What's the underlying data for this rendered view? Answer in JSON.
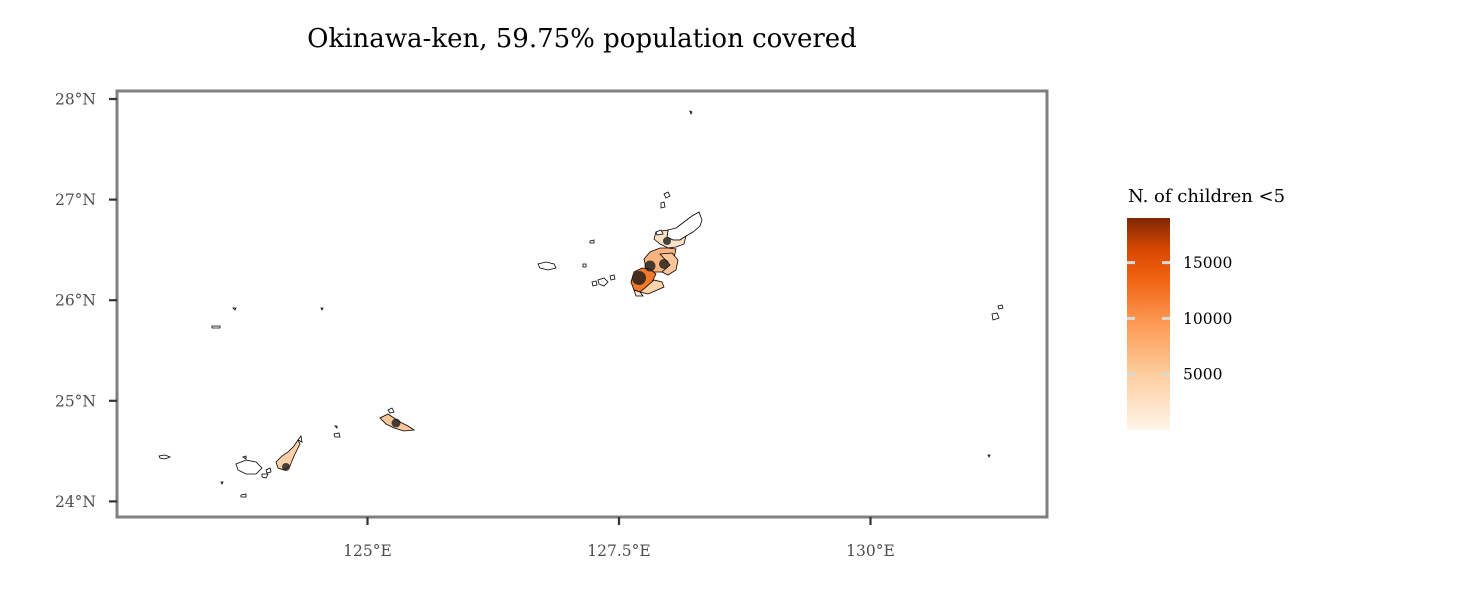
{
  "title": "Okinawa-ken, 59.75% population covered",
  "axes": {
    "y_ticks": [
      {
        "value": 28,
        "label": "28°N"
      },
      {
        "value": 27,
        "label": "27°N"
      },
      {
        "value": 26,
        "label": "26°N"
      },
      {
        "value": 25,
        "label": "25°N"
      },
      {
        "value": 24,
        "label": "24°N"
      }
    ],
    "x_ticks": [
      {
        "value": 125,
        "label": "125°E"
      },
      {
        "value": 127.5,
        "label": "127.5°E"
      },
      {
        "value": 130,
        "label": "130°E"
      }
    ],
    "lon_range": [
      122.5,
      131.75
    ],
    "lat_range": [
      23.85,
      28.1
    ]
  },
  "legend": {
    "title": "N. of children <5",
    "ticks": [
      {
        "value": 15000,
        "label": "15000"
      },
      {
        "value": 10000,
        "label": "10000"
      },
      {
        "value": 5000,
        "label": "5000"
      }
    ],
    "range": [
      0,
      19000
    ],
    "colors": [
      "#fff5eb",
      "#fdd0a2",
      "#fd8d3c",
      "#e6550d",
      "#d94801",
      "#7f2704"
    ]
  },
  "colors": {
    "panel_border": "#808080",
    "outline": "#000000",
    "point": "#1a1a1a",
    "tick": "#333333"
  }
}
